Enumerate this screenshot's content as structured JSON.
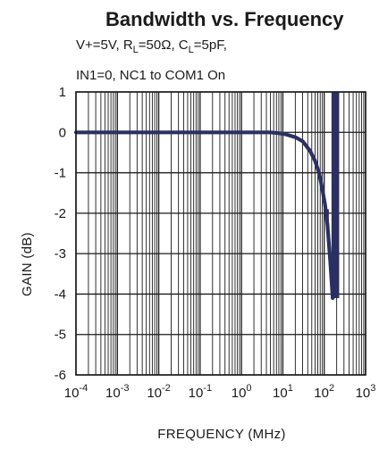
{
  "chart_data": {
    "type": "line",
    "title": "Bandwidth vs. Frequency",
    "subtitle_lines": [
      [
        {
          "text": "V+=5V, R"
        },
        {
          "text": "L",
          "sub": true
        },
        {
          "text": "=50Ω, C"
        },
        {
          "text": "L",
          "sub": true
        },
        {
          "text": "=5pF,"
        }
      ],
      [
        {
          "text": "IN1=0, NC1 to COM1 On"
        }
      ]
    ],
    "xlabel": "FREQUENCY (MHz)",
    "ylabel": "GAIN (dB)",
    "x_scale": "log",
    "xlim": [
      0.0001,
      1000
    ],
    "ylim": [
      -6,
      1
    ],
    "x_ticks": [
      {
        "base": "10",
        "exp": "-4",
        "value": 0.0001
      },
      {
        "base": "10",
        "exp": "-3",
        "value": 0.001
      },
      {
        "base": "10",
        "exp": "-2",
        "value": 0.01
      },
      {
        "base": "10",
        "exp": "-1",
        "value": 0.1
      },
      {
        "base": "10",
        "exp": "0",
        "value": 1
      },
      {
        "base": "10",
        "exp": "1",
        "value": 10
      },
      {
        "base": "10",
        "exp": "2",
        "value": 100
      },
      {
        "base": "10",
        "exp": "3",
        "value": 1000
      }
    ],
    "y_ticks": [
      {
        "label": "1",
        "value": 1
      },
      {
        "label": "0",
        "value": 0
      },
      {
        "label": "-1",
        "value": -1
      },
      {
        "label": "-2",
        "value": -2
      },
      {
        "label": "-3",
        "value": -3
      },
      {
        "label": "-4",
        "value": -4
      },
      {
        "label": "-5",
        "value": -5
      },
      {
        "label": "-6",
        "value": -6
      }
    ],
    "grid": true,
    "line_color": "#2b3063",
    "series": [
      {
        "x": [
          0.0001,
          0.001,
          0.01,
          0.1,
          1,
          5,
          8,
          12,
          20,
          30,
          45,
          60,
          75,
          90,
          105,
          120,
          140,
          160
        ],
        "y": [
          0,
          0,
          0,
          0,
          0,
          0,
          -0.02,
          -0.05,
          -0.12,
          -0.22,
          -0.45,
          -0.7,
          -1.0,
          -1.4,
          -1.8,
          -2.3,
          -3.2,
          -4.1
        ]
      }
    ],
    "band": {
      "x": [
        150,
        230
      ],
      "y": [
        -4.1,
        1
      ]
    }
  }
}
